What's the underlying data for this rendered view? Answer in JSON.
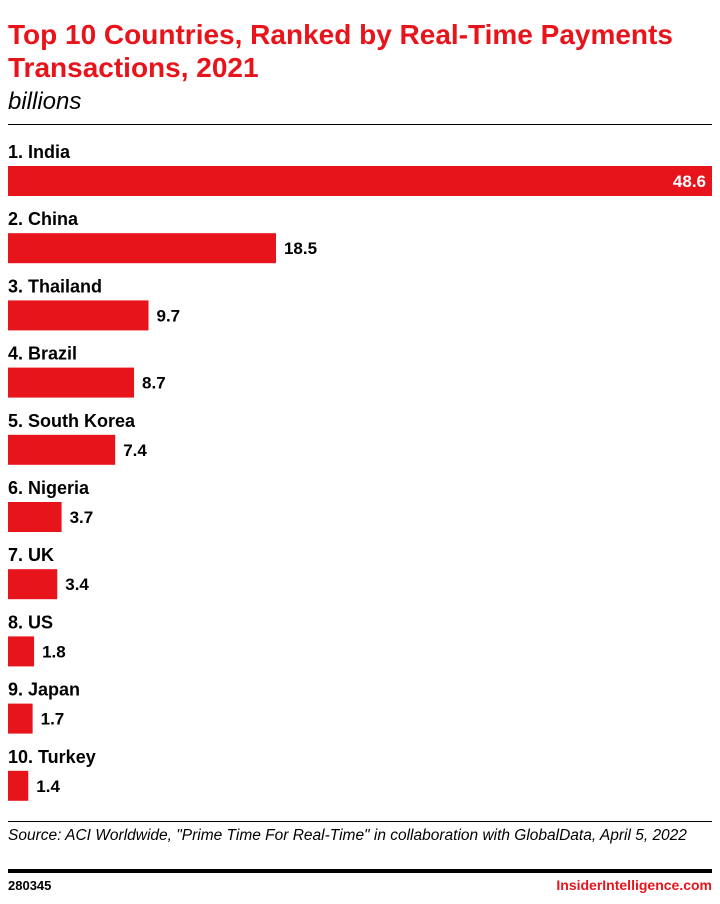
{
  "header": {
    "title": "Top 10 Countries, Ranked by Real-Time Payments Transactions, 2021",
    "subtitle": "billions"
  },
  "chart_data": {
    "type": "bar",
    "orientation": "horizontal",
    "categories": [
      "1. India",
      "2. China",
      "3. Thailand",
      "4. Brazil",
      "5. South Korea",
      "6. Nigeria",
      "7. UK",
      "8. US",
      "9. Japan",
      "10. Turkey"
    ],
    "values": [
      48.6,
      18.5,
      9.7,
      8.7,
      7.4,
      3.7,
      3.4,
      1.8,
      1.7,
      1.4
    ],
    "value_labels": [
      "48.6",
      "18.5",
      "9.7",
      "8.7",
      "7.4",
      "3.7",
      "3.4",
      "1.8",
      "1.7",
      "1.4"
    ],
    "title": "Top 10 Countries, Ranked by Real-Time Payments Transactions, 2021",
    "xlabel": "",
    "ylabel": "",
    "xlim": [
      0,
      48.6
    ],
    "grid": false,
    "legend": "none",
    "bar_color": "#e8141c"
  },
  "footer": {
    "source": "Source: ACI Worldwide, \"Prime Time For Real-Time\" in collaboration with GlobalData, April 5, 2022",
    "chart_id": "280345",
    "brand": "InsiderIntelligence.com"
  },
  "colors": {
    "accent": "#e8141c",
    "text": "#000000"
  }
}
